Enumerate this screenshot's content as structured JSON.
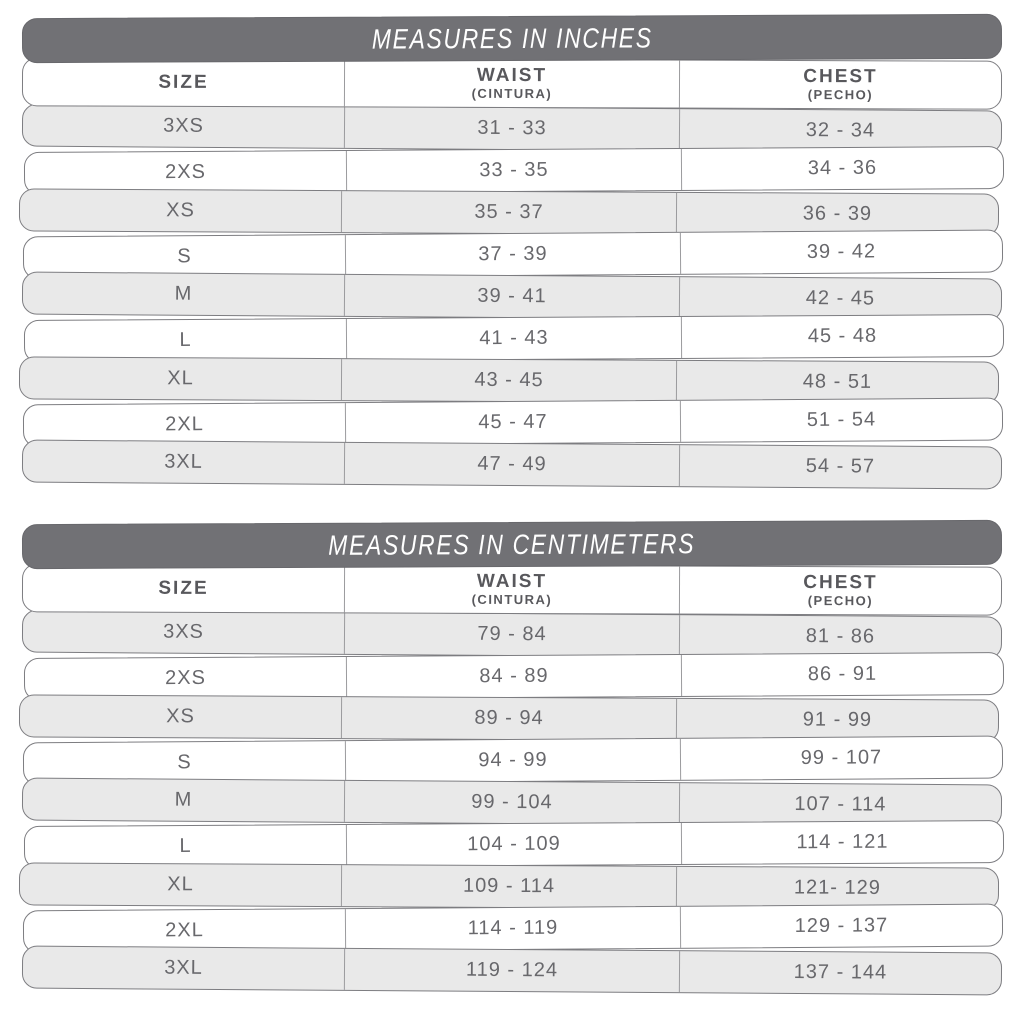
{
  "colors": {
    "title_band_bg": "#717175",
    "title_text": "#ffffff",
    "row_alt_gray": "#e9e9e9",
    "row_white": "#ffffff",
    "strip_border": "#7d7d81",
    "column_divider": "#9b9b9e",
    "header_text": "#58585c",
    "data_text": "#68686c"
  },
  "chart_data": [
    {
      "type": "table",
      "title": "MEASURES IN INCHES",
      "columns": [
        "SIZE",
        "WAIST (CINTURA)",
        "CHEST (PECHO)"
      ],
      "rows": [
        [
          "3XS",
          "31 - 33",
          "32 - 34"
        ],
        [
          "2XS",
          "33 - 35",
          "34 - 36"
        ],
        [
          "XS",
          "35 - 37",
          "36 - 39"
        ],
        [
          "S",
          "37 - 39",
          "39 - 42"
        ],
        [
          "M",
          "39 - 41",
          "42 - 45"
        ],
        [
          "L",
          "41 - 43",
          "45 - 48"
        ],
        [
          "XL",
          "43 - 45",
          "48 - 51"
        ],
        [
          "2XL",
          "45 - 47",
          "51 - 54"
        ],
        [
          "3XL",
          "47 - 49",
          "54 - 57"
        ]
      ]
    },
    {
      "type": "table",
      "title": "MEASURES IN CENTIMETERS",
      "columns": [
        "SIZE",
        "WAIST (CINTURA)",
        "CHEST (PECHO)"
      ],
      "rows": [
        [
          "3XS",
          "79 - 84",
          "81 - 86"
        ],
        [
          "2XS",
          "84 - 89",
          "86 - 91"
        ],
        [
          "XS",
          "89 - 94",
          "91 - 99"
        ],
        [
          "S",
          "94 - 99",
          "99 - 107"
        ],
        [
          "M",
          "99 - 104",
          "107 - 114"
        ],
        [
          "L",
          "104 - 109",
          "114 - 121"
        ],
        [
          "XL",
          "109 - 114",
          "121- 129"
        ],
        [
          "2XL",
          "114 - 119",
          "129 - 137"
        ],
        [
          "3XL",
          "119 - 124",
          "137 - 144"
        ]
      ]
    }
  ],
  "tables": [
    {
      "title": "MEASURES IN INCHES",
      "headers": {
        "size": "SIZE",
        "waist": "WAIST",
        "waist_sub": "(CINTURA)",
        "chest": "CHEST",
        "chest_sub": "(PECHO)"
      }
    },
    {
      "title": "MEASURES IN CENTIMETERS",
      "headers": {
        "size": "SIZE",
        "waist": "WAIST",
        "waist_sub": "(CINTURA)",
        "chest": "CHEST",
        "chest_sub": "(PECHO)"
      }
    }
  ]
}
